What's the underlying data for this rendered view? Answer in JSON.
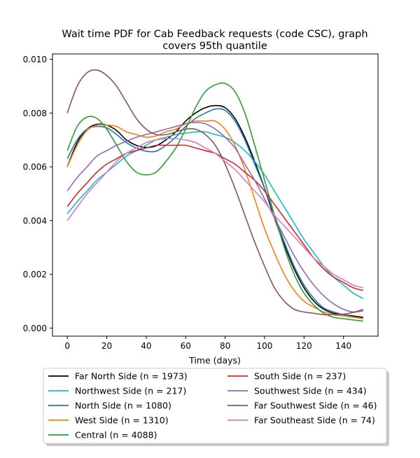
{
  "chart_data": {
    "type": "line",
    "title_line1": "Wait time PDF for Cab Feedback  requests (code CSC), graph",
    "title_line2": "covers 95th quantile",
    "xlabel": "Time (days)",
    "ylabel": "",
    "xlim": [
      -7.5,
      157.5
    ],
    "ylim": [
      -0.0003,
      0.0102
    ],
    "xticks": [
      0,
      20,
      40,
      60,
      80,
      100,
      120,
      140
    ],
    "yticks": [
      0.0,
      0.002,
      0.004,
      0.006,
      0.008,
      0.01
    ],
    "ytick_labels": [
      "0.000",
      "0.002",
      "0.004",
      "0.006",
      "0.008",
      "0.010"
    ],
    "xtick_labels": [
      "0",
      "20",
      "40",
      "60",
      "80",
      "100",
      "120",
      "140"
    ],
    "legend_location": "below plot",
    "series": [
      {
        "name": "Far North Side (n = 1973)",
        "color": "#000000",
        "x": [
          0,
          5,
          10,
          15,
          20,
          25,
          30,
          35,
          40,
          45,
          50,
          55,
          60,
          65,
          70,
          75,
          80,
          85,
          90,
          95,
          100,
          105,
          110,
          115,
          120,
          125,
          130,
          135,
          140,
          145,
          150
        ],
        "y": [
          0.006,
          0.0069,
          0.0074,
          0.00758,
          0.00755,
          0.00735,
          0.007,
          0.0068,
          0.00672,
          0.00678,
          0.007,
          0.0073,
          0.0077,
          0.008,
          0.0082,
          0.00828,
          0.0082,
          0.0078,
          0.0071,
          0.0062,
          0.0052,
          0.0041,
          0.0031,
          0.0022,
          0.0015,
          0.001,
          0.0007,
          0.00055,
          0.0005,
          0.00045,
          0.0004
        ]
      },
      {
        "name": "Northwest Side (n = 217)",
        "color": "#17becf",
        "x": [
          0,
          5,
          10,
          15,
          20,
          25,
          30,
          35,
          40,
          45,
          50,
          55,
          60,
          65,
          70,
          75,
          80,
          85,
          90,
          95,
          100,
          105,
          110,
          115,
          120,
          125,
          130,
          135,
          140,
          145,
          150
        ],
        "y": [
          0.00425,
          0.0047,
          0.0051,
          0.0055,
          0.0058,
          0.0061,
          0.0064,
          0.0066,
          0.0068,
          0.007,
          0.0071,
          0.0072,
          0.00725,
          0.0073,
          0.0073,
          0.0072,
          0.0071,
          0.0069,
          0.0066,
          0.0062,
          0.0057,
          0.0051,
          0.0045,
          0.0039,
          0.0033,
          0.0028,
          0.0023,
          0.0019,
          0.0016,
          0.0013,
          0.0011
        ]
      },
      {
        "name": "North Side (n = 1080)",
        "color": "#1f77b4",
        "x": [
          0,
          5,
          10,
          15,
          20,
          25,
          30,
          35,
          40,
          45,
          50,
          55,
          60,
          65,
          70,
          75,
          80,
          85,
          90,
          95,
          100,
          105,
          110,
          115,
          120,
          125,
          130,
          135,
          140,
          145,
          150
        ],
        "y": [
          0.0063,
          0.007,
          0.0074,
          0.0075,
          0.00745,
          0.0072,
          0.0069,
          0.0067,
          0.00658,
          0.00658,
          0.0068,
          0.0071,
          0.0075,
          0.0078,
          0.008,
          0.00815,
          0.0081,
          0.0077,
          0.007,
          0.0061,
          0.0052,
          0.0042,
          0.0032,
          0.0023,
          0.0016,
          0.0011,
          0.00075,
          0.0006,
          0.0005,
          0.00042,
          0.00036
        ]
      },
      {
        "name": "West Side (n = 1310)",
        "color": "#ff7f0e",
        "x": [
          0,
          5,
          10,
          15,
          20,
          25,
          30,
          35,
          40,
          45,
          50,
          55,
          60,
          65,
          70,
          75,
          80,
          85,
          90,
          95,
          100,
          105,
          110,
          115,
          120,
          125,
          130,
          135,
          140,
          145,
          150
        ],
        "y": [
          0.006,
          0.0068,
          0.00735,
          0.00755,
          0.00755,
          0.0075,
          0.0073,
          0.0072,
          0.0071,
          0.00715,
          0.0073,
          0.0074,
          0.0076,
          0.0077,
          0.0077,
          0.0077,
          0.0074,
          0.0068,
          0.0059,
          0.0048,
          0.0037,
          0.0028,
          0.002,
          0.0014,
          0.001,
          0.00078,
          0.0006,
          0.0005,
          0.00045,
          0.0004,
          0.00035
        ]
      },
      {
        "name": "Central (n = 4088)",
        "color": "#2ca02c",
        "x": [
          0,
          5,
          10,
          15,
          20,
          25,
          30,
          35,
          40,
          45,
          50,
          55,
          60,
          65,
          70,
          75,
          80,
          85,
          90,
          95,
          100,
          105,
          110,
          115,
          120,
          125,
          130,
          135,
          140,
          145,
          150
        ],
        "y": [
          0.0066,
          0.0075,
          0.00785,
          0.0078,
          0.0074,
          0.0068,
          0.0062,
          0.0058,
          0.0057,
          0.0058,
          0.0062,
          0.0067,
          0.0074,
          0.0082,
          0.0088,
          0.00905,
          0.0091,
          0.0088,
          0.008,
          0.0068,
          0.0055,
          0.0042,
          0.003,
          0.002,
          0.0013,
          0.00085,
          0.00055,
          0.0004,
          0.00035,
          0.0003,
          0.00026
        ]
      },
      {
        "name": "South Side (n = 237)",
        "color": "#d62728",
        "x": [
          0,
          5,
          10,
          15,
          20,
          25,
          30,
          35,
          40,
          45,
          50,
          55,
          60,
          65,
          70,
          75,
          80,
          85,
          90,
          95,
          100,
          105,
          110,
          115,
          120,
          125,
          130,
          135,
          140,
          145,
          150
        ],
        "y": [
          0.00452,
          0.005,
          0.0054,
          0.0058,
          0.0061,
          0.0063,
          0.0065,
          0.0066,
          0.0067,
          0.0068,
          0.0068,
          0.0068,
          0.0068,
          0.0067,
          0.0066,
          0.0065,
          0.0063,
          0.0061,
          0.0058,
          0.0055,
          0.0051,
          0.0046,
          0.0041,
          0.0036,
          0.0031,
          0.0026,
          0.0022,
          0.0019,
          0.0017,
          0.0015,
          0.0014
        ]
      },
      {
        "name": "Southwest Side (n = 434)",
        "color": "#9467bd",
        "x": [
          0,
          5,
          10,
          15,
          20,
          25,
          30,
          35,
          40,
          45,
          50,
          55,
          60,
          65,
          70,
          75,
          80,
          85,
          90,
          95,
          100,
          105,
          110,
          115,
          120,
          125,
          130,
          135,
          140,
          145,
          150
        ],
        "y": [
          0.0051,
          0.0056,
          0.006,
          0.0064,
          0.0066,
          0.0068,
          0.00695,
          0.0071,
          0.0072,
          0.0073,
          0.0074,
          0.0075,
          0.0076,
          0.00765,
          0.0076,
          0.0074,
          0.0071,
          0.0067,
          0.0061,
          0.0055,
          0.0048,
          0.0041,
          0.0034,
          0.0027,
          0.0021,
          0.0016,
          0.0012,
          0.0009,
          0.0007,
          0.0006,
          0.0007
        ]
      },
      {
        "name": "Far Southwest Side (n = 46)",
        "color": "#8c564b",
        "x": [
          0,
          5,
          10,
          15,
          20,
          25,
          30,
          35,
          40,
          45,
          50,
          55,
          60,
          65,
          70,
          75,
          80,
          85,
          90,
          95,
          100,
          105,
          110,
          115,
          120,
          125,
          130,
          135,
          140,
          145,
          150
        ],
        "y": [
          0.008,
          0.009,
          0.0095,
          0.0096,
          0.0094,
          0.009,
          0.0084,
          0.0078,
          0.0074,
          0.0072,
          0.0072,
          0.0073,
          0.0074,
          0.0074,
          0.0072,
          0.0068,
          0.0061,
          0.0052,
          0.0042,
          0.0032,
          0.0023,
          0.0015,
          0.001,
          0.0007,
          0.0006,
          0.00055,
          0.0005,
          0.0005,
          0.00052,
          0.00058,
          0.00065
        ]
      },
      {
        "name": "Far Southeast Side (n = 74)",
        "color": "#e377c2",
        "x": [
          0,
          5,
          10,
          15,
          20,
          25,
          30,
          35,
          40,
          45,
          50,
          55,
          60,
          65,
          70,
          75,
          80,
          85,
          90,
          95,
          100,
          105,
          110,
          115,
          120,
          125,
          130,
          135,
          140,
          145,
          150
        ],
        "y": [
          0.004,
          0.0045,
          0.005,
          0.0054,
          0.0058,
          0.0062,
          0.0065,
          0.0067,
          0.0069,
          0.007,
          0.00705,
          0.00705,
          0.007,
          0.0069,
          0.0067,
          0.0065,
          0.0062,
          0.0059,
          0.0055,
          0.0051,
          0.0047,
          0.0042,
          0.0038,
          0.0034,
          0.003,
          0.0026,
          0.0023,
          0.002,
          0.0018,
          0.0016,
          0.0015
        ]
      }
    ]
  }
}
